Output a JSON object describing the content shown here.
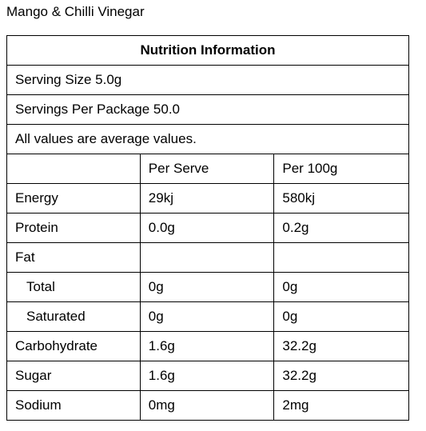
{
  "title": "Mango & Chilli Vinegar",
  "table": {
    "heading": "Nutrition Information",
    "notes": [
      "Serving Size 5.0g",
      "Servings Per Package 50.0",
      "All values are average values."
    ],
    "columns": [
      "Per Serve",
      "Per 100g"
    ],
    "rows": [
      {
        "label": "Energy",
        "values": [
          "29kj",
          "580kj"
        ]
      },
      {
        "label": "Protein",
        "values": [
          "0.0g",
          "0.2g"
        ]
      },
      {
        "label": "Fat",
        "subrows": [
          {
            "label": "Total",
            "values": [
              "0g",
              "0g"
            ]
          },
          {
            "label": "Saturated",
            "values": [
              "0g",
              "0g"
            ]
          }
        ]
      },
      {
        "label": "Carbohydrate",
        "values": [
          "1.6g",
          "32.2g"
        ]
      },
      {
        "label": "Sugar",
        "values": [
          "1.6g",
          "32.2g"
        ]
      },
      {
        "label": "Sodium",
        "values": [
          "0mg",
          "2mg"
        ]
      }
    ]
  }
}
